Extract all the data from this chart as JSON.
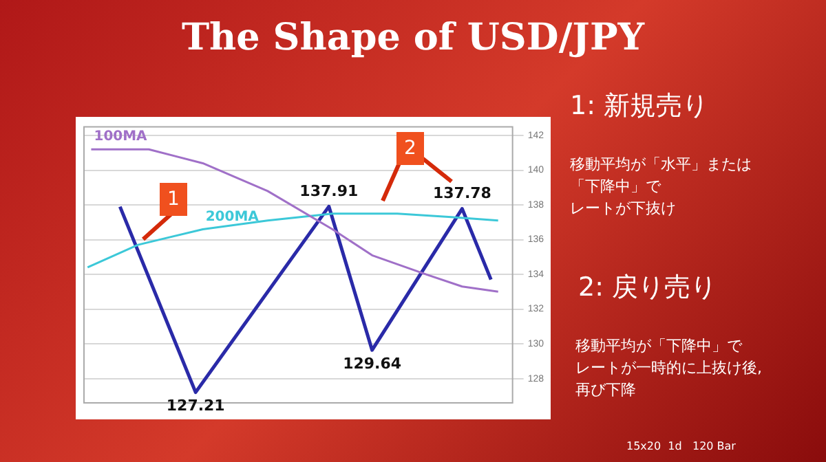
{
  "chart_data": {
    "type": "line",
    "title": "The Shape of USD/JPY",
    "categories": [
      null,
      null,
      null,
      null,
      null,
      null,
      null,
      null,
      null,
      null,
      null,
      null,
      null,
      null,
      null,
      null,
      null,
      null,
      null,
      null,
      null,
      null,
      null,
      null,
      null,
      null,
      null,
      null,
      null,
      null,
      null,
      null,
      null,
      null,
      null,
      null,
      null,
      null,
      null,
      null,
      null,
      null,
      null,
      null,
      null,
      null,
      null,
      null,
      null,
      null,
      null,
      null,
      null,
      null,
      null,
      null,
      null,
      null,
      null,
      null,
      null,
      null,
      null,
      null,
      null,
      null,
      null,
      null,
      null,
      null,
      null,
      null,
      null,
      null,
      null,
      null,
      null,
      null,
      null,
      null,
      null,
      null,
      null,
      null,
      null,
      null,
      null,
      null,
      null,
      null,
      null,
      null,
      null,
      null,
      null,
      null,
      null,
      null,
      null,
      null,
      null,
      null,
      null,
      null,
      null,
      null,
      null,
      null,
      null,
      null,
      null,
      null,
      null,
      null,
      null,
      null,
      null,
      null,
      null,
      null
    ],
    "ylim": [
      126.6,
      142.5
    ],
    "yticks": [
      128,
      130,
      132,
      134,
      136,
      138,
      140,
      142
    ],
    "tick_labels": "y",
    "grid": "y",
    "marker": "none",
    "line_style": "solid",
    "series": [
      {
        "name": "100MA",
        "color": "#a070c8",
        "values": [
          null,
          null,
          141.2,
          null,
          null,
          null,
          null,
          null,
          null,
          null,
          null,
          null,
          null,
          null,
          null,
          null,
          null,
          null,
          141.2,
          null,
          null,
          null,
          null,
          null,
          null,
          null,
          null,
          null,
          null,
          null,
          null,
          null,
          null,
          140.4,
          null,
          null,
          null,
          null,
          null,
          null,
          null,
          null,
          null,
          null,
          null,
          null,
          null,
          null,
          null,
          null,
          null,
          138.8,
          null,
          null,
          null,
          null,
          null,
          null,
          null,
          null,
          null,
          null,
          null,
          null,
          null,
          null,
          null,
          null,
          null,
          136.6,
          null,
          null,
          null,
          null,
          null,
          null,
          null,
          null,
          null,
          null,
          135.1,
          null,
          null,
          null,
          null,
          null,
          null,
          null,
          null,
          null,
          null,
          null,
          null,
          null,
          null,
          134.0,
          null,
          null,
          null,
          null,
          null,
          null,
          null,
          null,
          null,
          133.3,
          null,
          null,
          null,
          null,
          null,
          null,
          null,
          null,
          null,
          133.0,
          null,
          null,
          null,
          null
        ]
      },
      {
        "name": "200MA",
        "color": "#3cc8d8",
        "values": [
          null,
          134.4,
          null,
          null,
          null,
          null,
          null,
          null,
          null,
          null,
          null,
          null,
          null,
          null,
          null,
          135.7,
          null,
          null,
          null,
          null,
          null,
          null,
          null,
          null,
          null,
          null,
          null,
          null,
          null,
          null,
          null,
          null,
          null,
          136.6,
          null,
          null,
          null,
          null,
          null,
          null,
          null,
          null,
          null,
          null,
          null,
          null,
          null,
          null,
          null,
          null,
          null,
          137.1,
          null,
          null,
          null,
          null,
          null,
          null,
          null,
          null,
          null,
          null,
          null,
          null,
          null,
          null,
          null,
          null,
          null,
          137.5,
          null,
          null,
          null,
          null,
          null,
          null,
          null,
          null,
          null,
          null,
          null,
          null,
          null,
          null,
          null,
          null,
          null,
          137.5,
          null,
          null,
          null,
          null,
          null,
          null,
          null,
          null,
          null,
          null,
          null,
          null,
          null,
          null,
          137.3,
          null,
          null,
          null,
          null,
          null,
          null,
          null,
          null,
          null,
          null,
          null,
          null,
          137.1,
          null,
          null,
          null,
          null
        ]
      },
      {
        "color": "#2a2aa8",
        "values": [
          null,
          null,
          null,
          null,
          null,
          null,
          null,
          null,
          null,
          null,
          137.9,
          null,
          null,
          null,
          null,
          null,
          null,
          null,
          null,
          null,
          null,
          null,
          null,
          null,
          null,
          null,
          null,
          null,
          null,
          null,
          null,
          127.21,
          null,
          null,
          null,
          null,
          null,
          null,
          null,
          null,
          null,
          null,
          null,
          null,
          null,
          null,
          null,
          null,
          null,
          null,
          null,
          null,
          null,
          null,
          null,
          null,
          null,
          null,
          null,
          null,
          null,
          null,
          null,
          null,
          null,
          null,
          null,
          null,
          137.91,
          null,
          null,
          null,
          null,
          null,
          null,
          null,
          null,
          null,
          null,
          null,
          129.64,
          null,
          null,
          null,
          null,
          null,
          null,
          null,
          null,
          null,
          null,
          null,
          null,
          null,
          null,
          null,
          null,
          null,
          null,
          null,
          null,
          null,
          null,
          null,
          null,
          137.78,
          null,
          null,
          null,
          null,
          null,
          null,
          null,
          133.7,
          null,
          null,
          null,
          null,
          null,
          null
        ],
        "value_labels": [
          null,
          null,
          null,
          null,
          null,
          null,
          null,
          null,
          null,
          null,
          null,
          null,
          null,
          null,
          null,
          null,
          null,
          null,
          null,
          null,
          null,
          null,
          null,
          null,
          null,
          null,
          null,
          null,
          null,
          null,
          null,
          "127.21",
          null,
          null,
          null,
          null,
          null,
          null,
          null,
          null,
          null,
          null,
          null,
          null,
          null,
          null,
          null,
          null,
          null,
          null,
          null,
          null,
          null,
          null,
          null,
          null,
          null,
          null,
          null,
          null,
          null,
          null,
          null,
          null,
          null,
          null,
          null,
          null,
          "137.91",
          null,
          null,
          null,
          null,
          null,
          null,
          null,
          null,
          null,
          null,
          null,
          "129.64",
          null,
          null,
          null,
          null,
          null,
          null,
          null,
          null,
          null,
          null,
          null,
          null,
          null,
          null,
          null,
          null,
          null,
          null,
          null,
          null,
          null,
          null,
          null,
          null,
          "137.78",
          null,
          null,
          null,
          null,
          null,
          null,
          null,
          null,
          null,
          null,
          null,
          null,
          null,
          null
        ]
      }
    ],
    "annotations": [
      "1",
      "2",
      "1: 新規売り",
      "移動平均が「水平」または",
      "「下降中」で",
      "レートが下抜け",
      "2: 戻り売り",
      "移動平均が「下降中」で",
      "レートが一時的に上抜け後,",
      "再び下降",
      "15x20  1d   120 Bar"
    ]
  }
}
